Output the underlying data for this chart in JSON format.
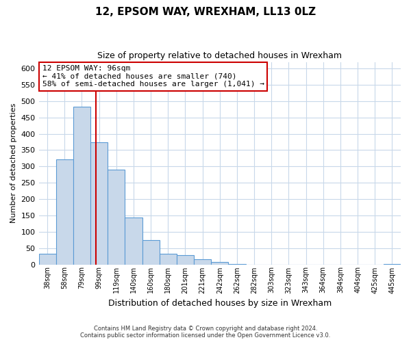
{
  "title": "12, EPSOM WAY, WREXHAM, LL13 0LZ",
  "subtitle": "Size of property relative to detached houses in Wrexham",
  "xlabel": "Distribution of detached houses by size in Wrexham",
  "ylabel": "Number of detached properties",
  "bar_labels": [
    "38sqm",
    "58sqm",
    "79sqm",
    "99sqm",
    "119sqm",
    "140sqm",
    "160sqm",
    "180sqm",
    "201sqm",
    "221sqm",
    "242sqm",
    "262sqm",
    "282sqm",
    "303sqm",
    "323sqm",
    "343sqm",
    "364sqm",
    "384sqm",
    "404sqm",
    "425sqm",
    "445sqm"
  ],
  "bar_values": [
    32,
    322,
    483,
    375,
    290,
    144,
    75,
    32,
    29,
    16,
    7,
    1,
    0,
    0,
    0,
    0,
    0,
    0,
    0,
    0,
    2
  ],
  "bar_color": "#c8d8ea",
  "bar_edge_color": "#5b9bd5",
  "vline_color": "#cc0000",
  "vline_xindex": 2.82,
  "ylim": [
    0,
    620
  ],
  "yticks": [
    0,
    50,
    100,
    150,
    200,
    250,
    300,
    350,
    400,
    450,
    500,
    550,
    600
  ],
  "annotation_title": "12 EPSOM WAY: 96sqm",
  "annotation_line1": "← 41% of detached houses are smaller (740)",
  "annotation_line2": "58% of semi-detached houses are larger (1,041) →",
  "annotation_box_color": "#ffffff",
  "annotation_box_edge": "#cc0000",
  "footnote1": "Contains HM Land Registry data © Crown copyright and database right 2024.",
  "footnote2": "Contains public sector information licensed under the Open Government Licence v3.0.",
  "background_color": "#ffffff",
  "grid_color": "#c8d8ea"
}
